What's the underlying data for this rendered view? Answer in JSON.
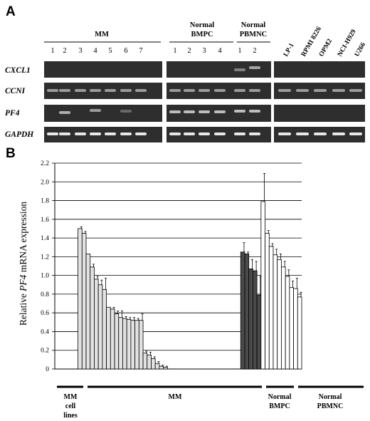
{
  "panel_a": {
    "letter": "A",
    "groups": [
      {
        "name": "MM",
        "lanes": [
          "1",
          "2",
          "3",
          "4",
          "5",
          "6",
          "7"
        ]
      },
      {
        "name": "Normal BMPC",
        "lanes": [
          "1",
          "2",
          "3",
          "4"
        ]
      },
      {
        "name": "Normal PBMNC",
        "lanes": [
          "1",
          "2"
        ]
      }
    ],
    "cell_lines": [
      "LP-1",
      "RPMI 8226",
      "OPM2",
      "NCI-H929",
      "U266"
    ],
    "genes": [
      "CXCL1",
      "CCNI",
      "PF4",
      "GAPDH"
    ]
  },
  "panel_b": {
    "letter": "B"
  },
  "chart_data": {
    "type": "bar",
    "ylabel_parts": [
      "Relative ",
      "PF4",
      " mRNA expression"
    ],
    "ylim": [
      0,
      2.2
    ],
    "yticks": [
      "0",
      "0.2",
      "0.4",
      "0.6",
      "0.8",
      "1.0",
      "1.2",
      "1.4",
      "1.6",
      "1.8",
      "2.0",
      "2.2"
    ],
    "grid": true,
    "groups": [
      {
        "name": "MM cell lines",
        "color": "#ffffff",
        "n": 5
      },
      {
        "name": "MM",
        "color": "#e2e2e2",
        "n": 40
      },
      {
        "name": "Normal BMPC",
        "color": "#4a4a4a",
        "n": 5
      },
      {
        "name": "Normal PBMNC",
        "color": "#ffffff",
        "n": 10
      }
    ],
    "values": [
      0,
      0,
      0,
      0,
      0,
      1.5,
      1.45,
      1.23,
      1.09,
      0.96,
      0.9,
      0.85,
      0.66,
      0.64,
      0.59,
      0.55,
      0.54,
      0.53,
      0.52,
      0.52,
      0.52,
      0.17,
      0.15,
      0.11,
      0.06,
      0.03,
      0.02,
      0,
      0,
      0,
      0,
      0,
      0,
      0,
      0,
      0,
      0,
      0,
      0,
      0,
      0,
      0,
      0,
      0,
      0,
      1.25,
      1.23,
      1.07,
      1.05,
      0.79,
      1.79,
      1.45,
      1.31,
      1.22,
      1.17,
      1.09,
      0.99,
      0.87,
      0.86,
      0.77
    ],
    "errors": [
      0,
      0,
      0,
      0,
      0,
      0.02,
      0.02,
      0,
      0.03,
      0.03,
      0.05,
      0.12,
      0,
      0.02,
      0.03,
      0.07,
      0.02,
      0.02,
      0.03,
      0.02,
      0.07,
      0.02,
      0.03,
      0.02,
      0.02,
      0.01,
      0.01,
      0,
      0,
      0,
      0,
      0,
      0,
      0,
      0,
      0,
      0,
      0,
      0,
      0,
      0,
      0,
      0,
      0,
      0,
      0.1,
      0.02,
      0.1,
      0.1,
      0.2,
      0.3,
      0.03,
      0.03,
      0.06,
      0.06,
      0.06,
      0.07,
      0.07,
      0.11,
      0.05
    ],
    "group_labels": [
      {
        "name": "MM",
        "lines": [
          "MM",
          "cell",
          "lines"
        ]
      },
      {
        "name": "MM",
        "lines": [
          "MM"
        ]
      },
      {
        "name": "Normal BMPC",
        "lines": [
          "Normal",
          "BMPC"
        ]
      },
      {
        "name": "Normal PBMNC",
        "lines": [
          "Normal",
          "PBMNC"
        ]
      }
    ]
  }
}
